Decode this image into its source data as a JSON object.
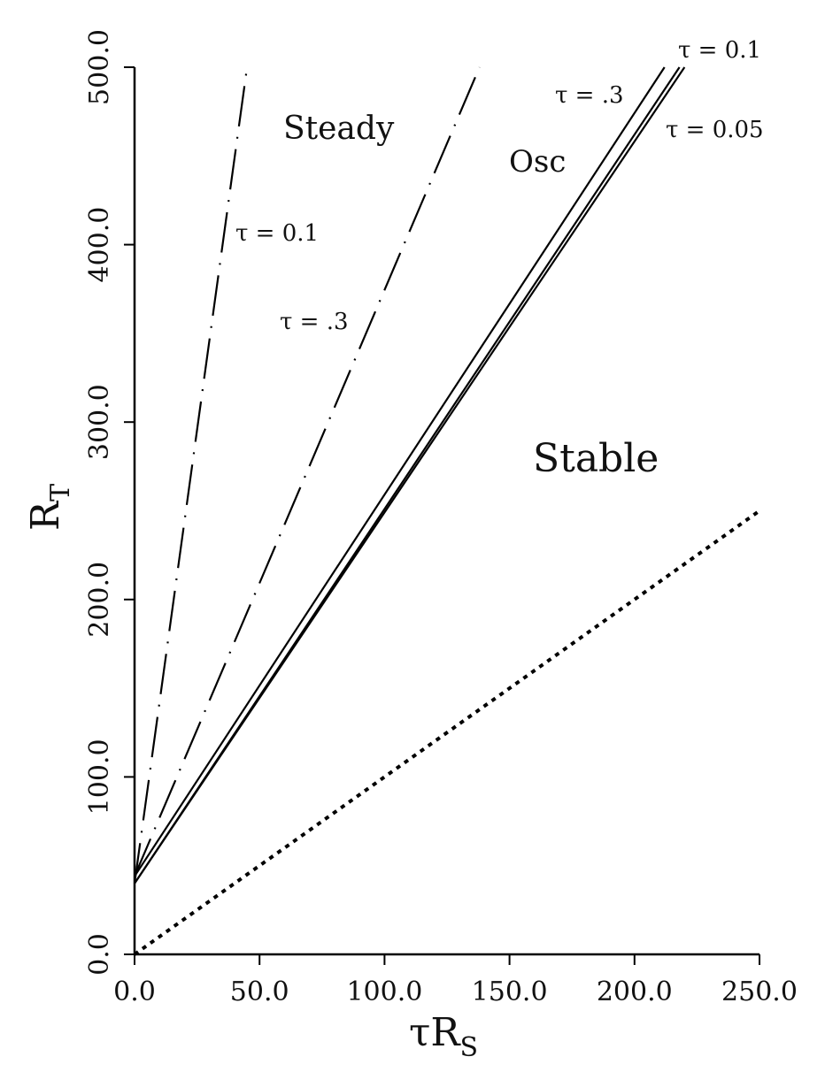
{
  "chart_data": {
    "type": "line",
    "xlabel": "τR_S",
    "ylabel": "R_T",
    "xlabel_main": "τR",
    "xlabel_sub": "S",
    "ylabel_main": "R",
    "ylabel_sub": "T",
    "xlim": [
      0,
      250
    ],
    "ylim": [
      0,
      500
    ],
    "x_ticks": [
      "0.0",
      "50.0",
      "100.0",
      "150.0",
      "200.0",
      "250.0"
    ],
    "y_ticks": [
      "0.0",
      "100.0",
      "200.0",
      "300.0",
      "400.0",
      "500.0"
    ],
    "grid": false,
    "regions": {
      "steady": "Steady",
      "osc": "Osc",
      "stable": "Stable"
    },
    "curve_labels": {
      "dash_tau_01": "τ = 0.1",
      "dash_tau_03": "τ = .3",
      "solid_tau_03": "τ = .3",
      "solid_tau_01": "τ = 0.1",
      "solid_tau_005": "τ = 0.05"
    },
    "series": [
      {
        "style": "dashed",
        "x": [
          0,
          45
        ],
        "y": [
          40,
          500
        ]
      },
      {
        "style": "dashed",
        "x": [
          0,
          138
        ],
        "y": [
          44,
          500
        ]
      },
      {
        "style": "solid",
        "x": [
          0,
          212
        ],
        "y": [
          44,
          500
        ]
      },
      {
        "style": "solid",
        "x": [
          0,
          218
        ],
        "y": [
          40,
          500
        ]
      },
      {
        "style": "solid",
        "x": [
          0,
          220
        ],
        "y": [
          40,
          500
        ]
      },
      {
        "style": "dotted",
        "x": [
          0,
          250
        ],
        "y": [
          0,
          250
        ]
      }
    ]
  }
}
